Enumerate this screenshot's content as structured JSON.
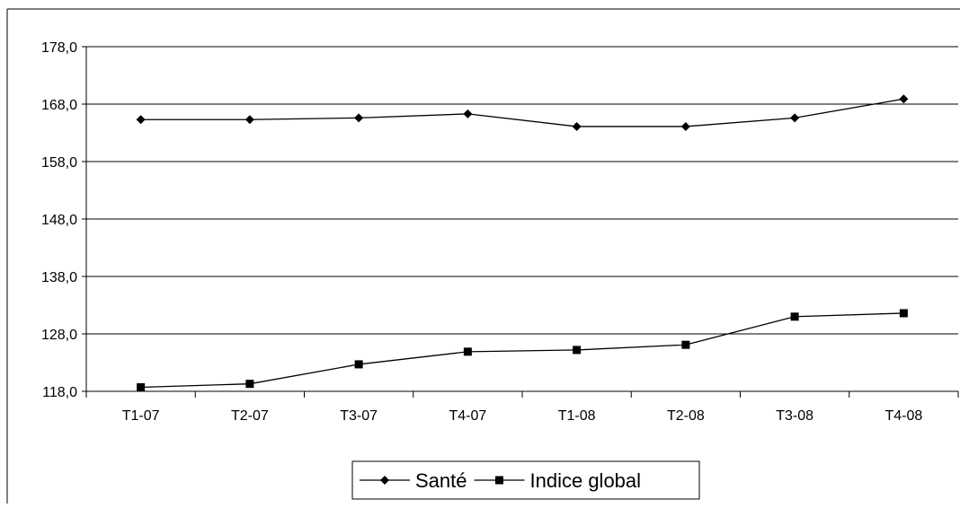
{
  "chart_data": {
    "type": "line",
    "title": "",
    "xlabel": "",
    "ylabel": "",
    "categories": [
      "T1-07",
      "T2-07",
      "T3-07",
      "T4-07",
      "T1-08",
      "T2-08",
      "T3-08",
      "T4-08"
    ],
    "ylim": [
      118.0,
      178.0
    ],
    "yticks": [
      "118,0",
      "128,0",
      "138,0",
      "148,0",
      "158,0",
      "168,0",
      "178,0"
    ],
    "grid": true,
    "legend": "bottom",
    "series": [
      {
        "name": "Santé",
        "marker": "diamond",
        "color": "#000000",
        "values": [
          165.3,
          165.3,
          165.6,
          166.3,
          164.1,
          164.1,
          165.6,
          168.9
        ]
      },
      {
        "name": "Indice global",
        "marker": "square",
        "color": "#000000",
        "values": [
          118.7,
          119.3,
          122.7,
          124.9,
          125.2,
          126.1,
          131.0,
          131.6
        ]
      }
    ]
  }
}
